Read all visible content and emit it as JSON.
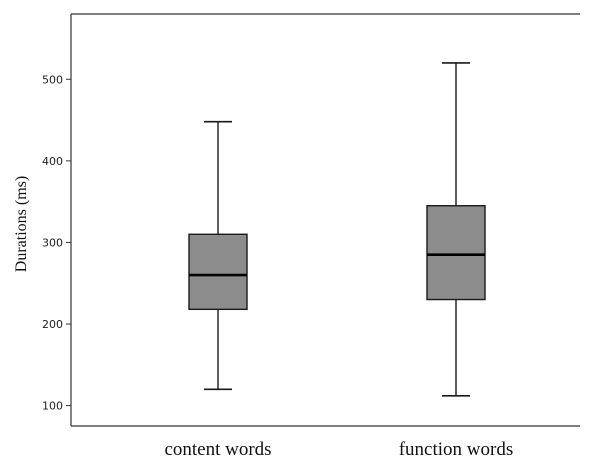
{
  "chart_data": {
    "type": "box",
    "title": "",
    "xlabel": "",
    "ylabel": "Durations (ms)",
    "ylim": [
      75,
      580
    ],
    "yticks": [
      100,
      200,
      300,
      400,
      500
    ],
    "ytick_labels": [
      "100",
      "200",
      "300",
      "400",
      "500"
    ],
    "grid": false,
    "categories": [
      "content words",
      "function words"
    ],
    "boxes": [
      {
        "category": "content words",
        "min": 120,
        "q1": 218,
        "median": 260,
        "q3": 310,
        "max": 448
      },
      {
        "category": "function words",
        "min": 112,
        "q1": 230,
        "median": 285,
        "q3": 345,
        "max": 520
      }
    ],
    "colors": {
      "box_fill": "#8c8c8c",
      "line": "#1a1a1a",
      "median": "#000000"
    }
  }
}
